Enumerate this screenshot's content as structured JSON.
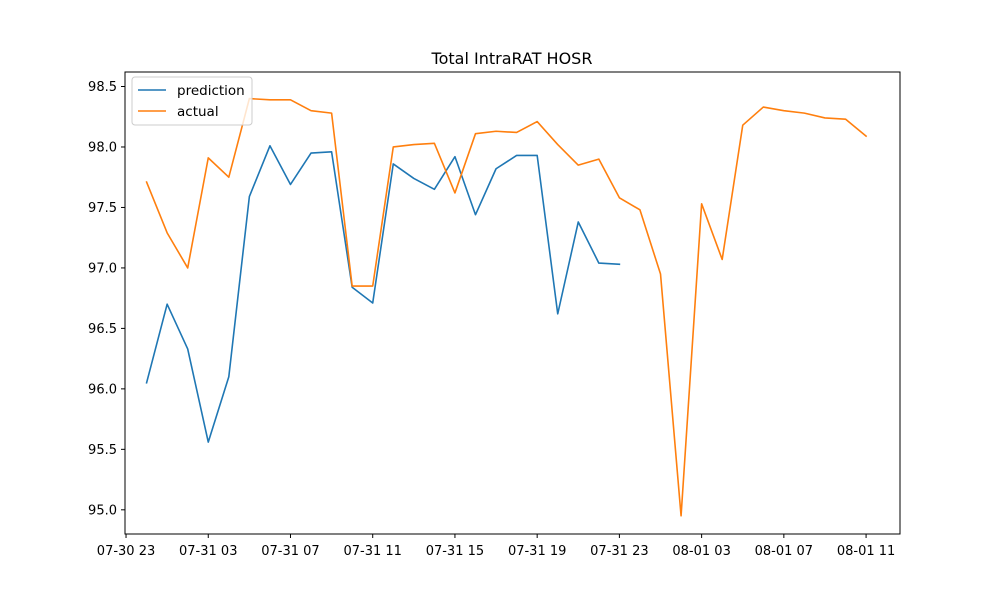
{
  "chart_data": {
    "type": "line",
    "title": "Total IntraRAT HOSR",
    "xlabel": "",
    "ylabel": "",
    "x_start": "07-31 00",
    "x_step_hours": 1,
    "x_ticks": [
      "07-30 23",
      "07-31 03",
      "07-31 07",
      "07-31 11",
      "07-31 15",
      "07-31 19",
      "07-31 23",
      "08-01 03",
      "08-01 07",
      "08-01 11"
    ],
    "y_ticks": [
      "95.0",
      "95.5",
      "96.0",
      "96.5",
      "97.0",
      "97.5",
      "98.0",
      "98.5"
    ],
    "ylim": [
      94.8,
      98.62
    ],
    "xlim_hours": [
      -1.05,
      36.65
    ],
    "grid": false,
    "legend_position": "upper left",
    "series": [
      {
        "name": "prediction",
        "color": "#1f77b4",
        "values": [
          96.05,
          96.7,
          96.33,
          95.56,
          96.1,
          97.59,
          98.01,
          97.69,
          97.95,
          97.96,
          96.84,
          96.71,
          97.86,
          97.74,
          97.65,
          97.92,
          97.44,
          97.82,
          97.93,
          97.93,
          96.62,
          97.38,
          97.04,
          97.03
        ]
      },
      {
        "name": "actual",
        "color": "#ff7f0e",
        "values": [
          97.71,
          97.29,
          97.0,
          97.91,
          97.75,
          98.4,
          98.39,
          98.39,
          98.3,
          98.28,
          96.85,
          96.85,
          98.0,
          98.02,
          98.03,
          97.62,
          98.11,
          98.13,
          98.12,
          98.21,
          98.02,
          97.85,
          97.9,
          97.58,
          97.48,
          96.95,
          94.95,
          97.53,
          97.07,
          98.18,
          98.33,
          98.3,
          98.28,
          98.24,
          98.23,
          98.09
        ]
      }
    ]
  }
}
